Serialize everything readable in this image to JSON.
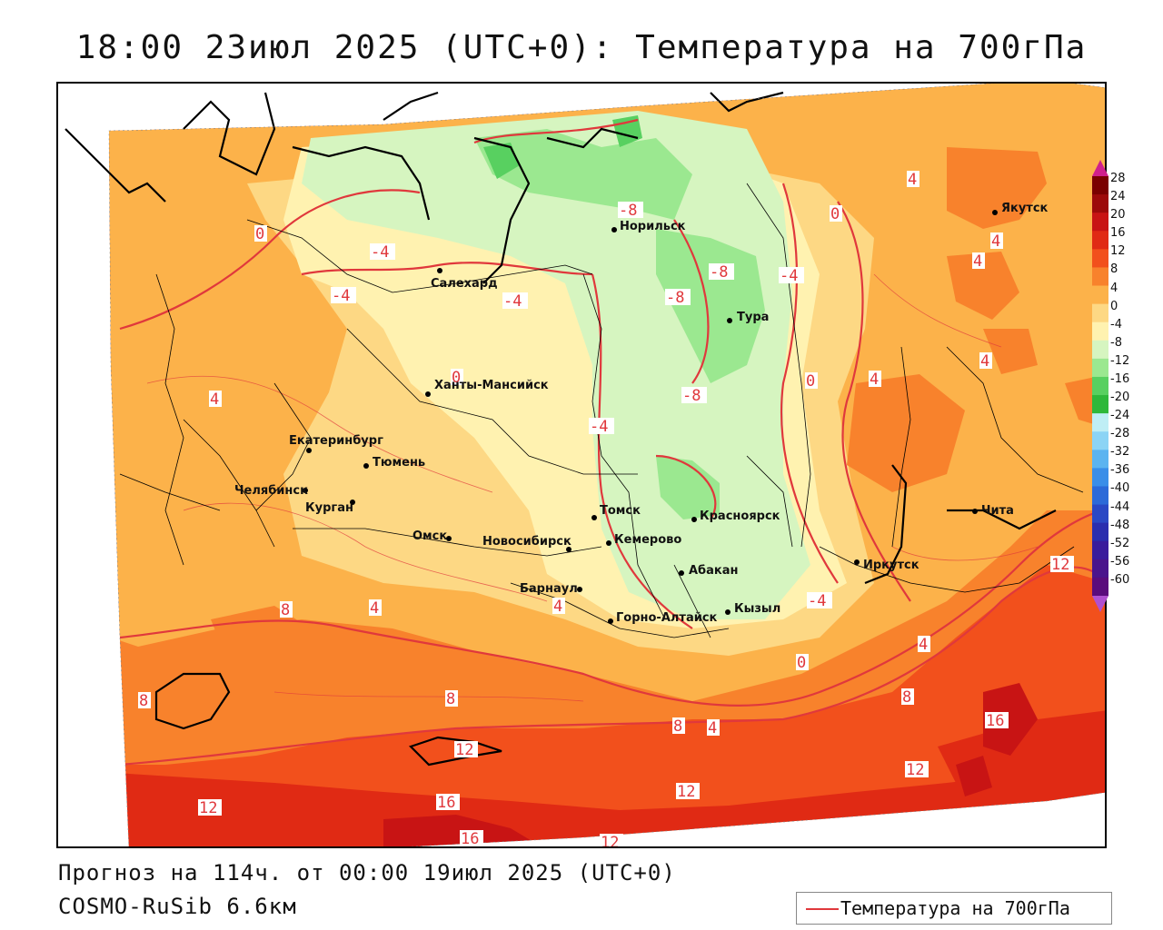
{
  "title": "18:00 23июл 2025 (UTC+0): Температура на 700гПа",
  "footer": {
    "forecast": "Прогноз на 114ч. от 00:00 19июл 2025 (UTC+0)",
    "model": "COSMO-RuSib 6.6км"
  },
  "legend": {
    "label": "Температура на 700гПа",
    "line_color": "#e0383c"
  },
  "colorbar": {
    "levels": [
      {
        "label": "28",
        "color": "#7a0000"
      },
      {
        "label": "24",
        "color": "#9c0a0a"
      },
      {
        "label": "20",
        "color": "#c81414"
      },
      {
        "label": "16",
        "color": "#e02a14"
      },
      {
        "label": "12",
        "color": "#f2501c"
      },
      {
        "label": "8",
        "color": "#f8822c"
      },
      {
        "label": "4",
        "color": "#fcb24a"
      },
      {
        "label": "0",
        "color": "#fdd884"
      },
      {
        "label": "-4",
        "color": "#fff2b0"
      },
      {
        "label": "-8",
        "color": "#d6f5c0"
      },
      {
        "label": "-12",
        "color": "#9be890"
      },
      {
        "label": "-16",
        "color": "#58d060"
      },
      {
        "label": "-20",
        "color": "#2eb83a"
      },
      {
        "label": "-24",
        "color": "#bfeef5"
      },
      {
        "label": "-28",
        "color": "#8cd4f5"
      },
      {
        "label": "-32",
        "color": "#5cb4f0"
      },
      {
        "label": "-36",
        "color": "#3a8ee8"
      },
      {
        "label": "-40",
        "color": "#2c6ad8"
      },
      {
        "label": "-44",
        "color": "#2a48c4"
      },
      {
        "label": "-48",
        "color": "#2a2eae"
      },
      {
        "label": "-52",
        "color": "#3a1c9c"
      },
      {
        "label": "-56",
        "color": "#4a148c"
      },
      {
        "label": "-60",
        "color": "#5a0c7c"
      }
    ],
    "top_arrow_color": "#d0208c",
    "bottom_arrow_color": "#b050d0"
  },
  "cities": [
    {
      "name": "Якутск"
    },
    {
      "name": "Норильск"
    },
    {
      "name": "Салехард"
    },
    {
      "name": "Тура"
    },
    {
      "name": "Ханты-Мансийск"
    },
    {
      "name": "Екатеринбург"
    },
    {
      "name": "Тюмень"
    },
    {
      "name": "Челябинск"
    },
    {
      "name": "Курган"
    },
    {
      "name": "Омск"
    },
    {
      "name": "Новосибирск"
    },
    {
      "name": "Томск"
    },
    {
      "name": "Кемерово"
    },
    {
      "name": "Красноярск"
    },
    {
      "name": "Абакан"
    },
    {
      "name": "Барнаул"
    },
    {
      "name": "Горно-Алтайск"
    },
    {
      "name": "Кызыл"
    },
    {
      "name": "Иркутск"
    },
    {
      "name": "Чита"
    }
  ],
  "isotherm_labels": [
    "0",
    "4",
    "-4",
    "-8",
    "8",
    "12",
    "16"
  ],
  "colors": {
    "contour_red": "#e0383c",
    "boundary": "#000000"
  }
}
